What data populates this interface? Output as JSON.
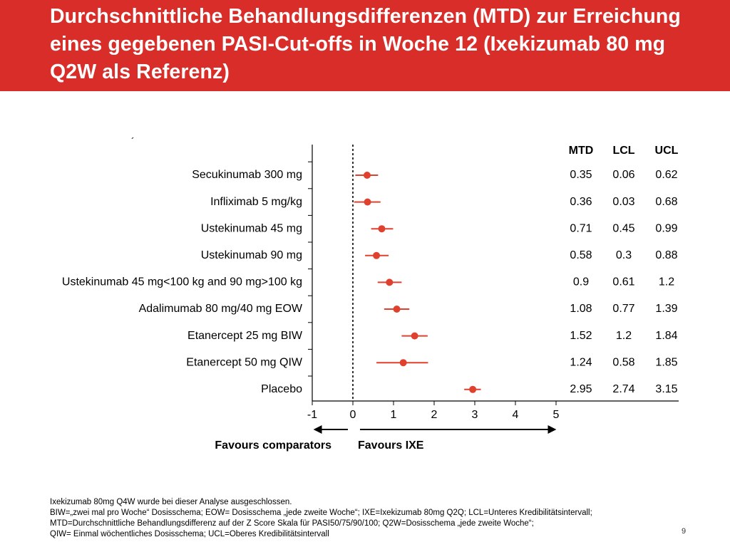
{
  "title": "Durchschnittliche Behandlungsdifferenzen (MTD) zur Erreichung eines gegebenen PASI-Cut-offs in Woche 12 (Ixekizumab 80 mg Q2W als Referenz)",
  "stray_mark": "´",
  "colors": {
    "header_bg": "#d82d28",
    "point": "#e0412f",
    "text": "#000000"
  },
  "chart_data": {
    "type": "forest",
    "x_ticks": [
      "-1",
      "0",
      "1",
      "2",
      "3",
      "4",
      "5"
    ],
    "xlim": [
      -1,
      5
    ],
    "reference_line": 0,
    "column_headers": [
      "MTD",
      "LCL",
      "UCL"
    ],
    "rows": [
      {
        "label": "Secukinumab 300 mg",
        "mtd": 0.35,
        "lcl": 0.06,
        "ucl": 0.62,
        "mtd_text": "0.35",
        "lcl_text": "0.06",
        "ucl_text": "0.62"
      },
      {
        "label": "Infliximab 5 mg/kg",
        "mtd": 0.36,
        "lcl": 0.03,
        "ucl": 0.68,
        "mtd_text": "0.36",
        "lcl_text": "0.03",
        "ucl_text": "0.68"
      },
      {
        "label": "Ustekinumab 45 mg",
        "mtd": 0.71,
        "lcl": 0.45,
        "ucl": 0.99,
        "mtd_text": "0.71",
        "lcl_text": "0.45",
        "ucl_text": "0.99"
      },
      {
        "label": "Ustekinumab 90 mg",
        "mtd": 0.58,
        "lcl": 0.3,
        "ucl": 0.88,
        "mtd_text": "0.58",
        "lcl_text": "0.3",
        "ucl_text": "0.88"
      },
      {
        "label": "Ustekinumab 45 mg<100 kg and 90 mg>100 kg",
        "mtd": 0.9,
        "lcl": 0.61,
        "ucl": 1.2,
        "mtd_text": "0.9",
        "lcl_text": "0.61",
        "ucl_text": "1.2"
      },
      {
        "label": "Adalimumab 80 mg/40 mg EOW",
        "mtd": 1.08,
        "lcl": 0.77,
        "ucl": 1.39,
        "mtd_text": "1.08",
        "lcl_text": "0.77",
        "ucl_text": "1.39"
      },
      {
        "label": "Etanercept 25 mg BIW",
        "mtd": 1.52,
        "lcl": 1.2,
        "ucl": 1.84,
        "mtd_text": "1.52",
        "lcl_text": "1.2",
        "ucl_text": "1.84"
      },
      {
        "label": "Etanercept 50 mg QIW",
        "mtd": 1.24,
        "lcl": 0.58,
        "ucl": 1.85,
        "mtd_text": "1.24",
        "lcl_text": "0.58",
        "ucl_text": "1.85"
      },
      {
        "label": "Placebo",
        "mtd": 2.95,
        "lcl": 2.74,
        "ucl": 3.15,
        "mtd_text": "2.95",
        "lcl_text": "2.74",
        "ucl_text": "3.15"
      }
    ],
    "favours_left": "Favours comparators",
    "favours_right": "Favours IXE"
  },
  "footnotes": [
    "Ixekizumab 80mg Q4W wurde bei dieser Analyse ausgeschlossen.",
    "BIW=„zwei mal pro Woche“ Dosisschema; EOW= Dosisschema „jede zweite Woche“; IXE=Ixekizumab 80mg Q2Q; LCL=Unteres Kredibilitätsintervall;",
    "MTD=Durchschnittliche Behandlungsdifferenz auf der Z Score Skala für PASI50/75/90/100; Q2W=Dosisschema „jede zweite Woche“;",
    "QIW= Einmal wöchentliches Dosisschema; UCL=Oberes Kredibilitätsintervall"
  ],
  "page_number": "9"
}
